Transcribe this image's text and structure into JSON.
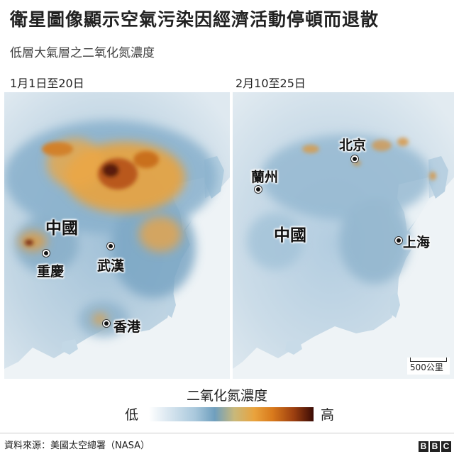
{
  "title": "衛星圖像顯示空氣污染因經濟活動停頓而退散",
  "subtitle": "低層大氣層之二氧化氮濃度",
  "panels": [
    {
      "period": "1月1日至20日",
      "country_label": "中國",
      "cities": [
        "重慶",
        "武漢",
        "香港"
      ]
    },
    {
      "period": "2月10至25日",
      "country_label": "中國",
      "cities": [
        "北京",
        "蘭州",
        "上海"
      ]
    }
  ],
  "scale_label": "500公里",
  "legend": {
    "title": "二氧化氮濃度",
    "low": "低",
    "high": "高",
    "colors": [
      "#ffffff",
      "#a9c8dc",
      "#6f9fbe",
      "#e9a33d",
      "#d97a1c",
      "#3a0b05"
    ]
  },
  "source": "資料來源：美國太空總署（NASA）",
  "logo": "BBC"
}
